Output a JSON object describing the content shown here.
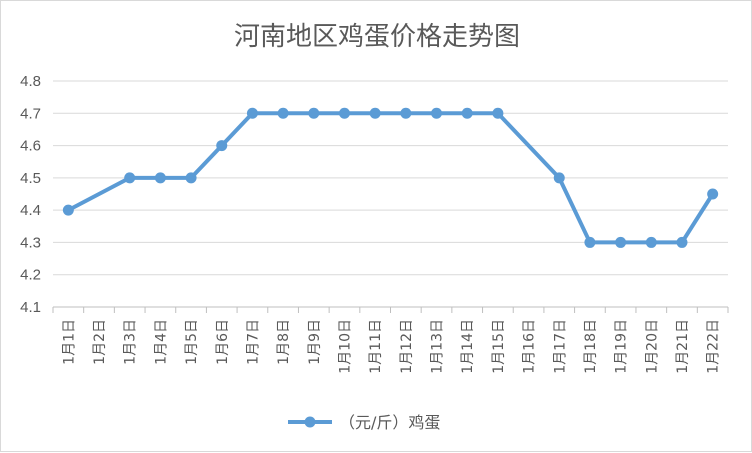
{
  "chart_data": {
    "type": "line",
    "title": "河南地区鸡蛋价格走势图",
    "categories": [
      "1月1日",
      "1月2日",
      "1月3日",
      "1月4日",
      "1月5日",
      "1月6日",
      "1月7日",
      "1月8日",
      "1月9日",
      "1月10日",
      "1月11日",
      "1月12日",
      "1月13日",
      "1月14日",
      "1月15日",
      "1月16日",
      "1月17日",
      "1月18日",
      "1月19日",
      "1月20日",
      "1月21日",
      "1月22日"
    ],
    "series": [
      {
        "name": "（元/斤）鸡蛋",
        "color": "#5b9bd5",
        "values": [
          4.4,
          null,
          4.5,
          4.5,
          4.5,
          4.6,
          4.7,
          4.7,
          4.7,
          4.7,
          4.7,
          4.7,
          4.7,
          4.7,
          4.7,
          null,
          4.5,
          4.3,
          4.3,
          4.3,
          4.3,
          4.45
        ]
      }
    ],
    "ylim": [
      4.1,
      4.8
    ],
    "yticks": [
      "4.1",
      "4.2",
      "4.3",
      "4.4",
      "4.5",
      "4.6",
      "4.7",
      "4.8"
    ],
    "grid": true,
    "legend": "bottom"
  }
}
